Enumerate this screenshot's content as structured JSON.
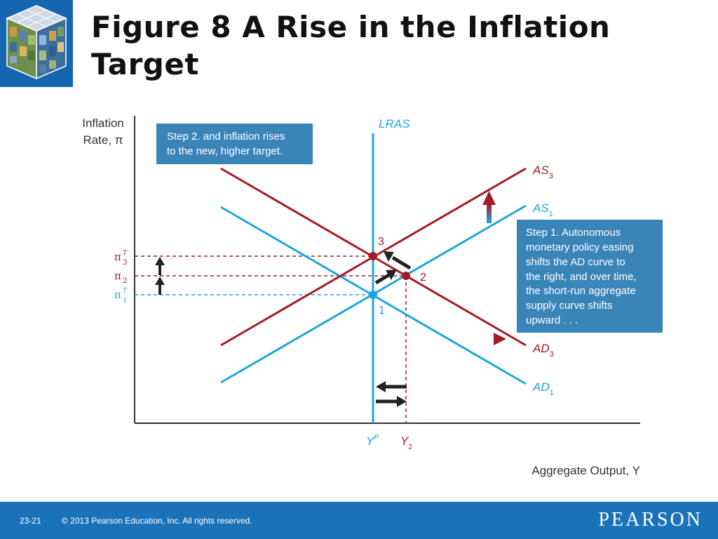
{
  "slide": {
    "title": "Figure 8  A Rise in the Inflation Target",
    "page_number": "23-21",
    "copyright": "© 2013 Pearson Education, Inc. All rights reserved.",
    "brand": "PEARSON"
  },
  "diagram": {
    "y_axis_label": [
      "Inflation",
      "Rate, π"
    ],
    "x_axis_label": "Aggregate Output, Y",
    "curves": {
      "lras": "LRAS",
      "as3": {
        "base": "AS",
        "sub": "3"
      },
      "as1": {
        "base": "AS",
        "sub": "1"
      },
      "ad3": {
        "base": "AD",
        "sub": "3"
      },
      "ad1": {
        "base": "AD",
        "sub": "1"
      }
    },
    "y_ticks": {
      "pi3": {
        "base": "π",
        "sup": "T",
        "sub": "3"
      },
      "pi2": {
        "base": "π",
        "sub": "2"
      },
      "pi1": {
        "base": "π",
        "sup": "T",
        "sub": "1"
      }
    },
    "x_ticks": {
      "yp": {
        "base": "Y",
        "sup": "P"
      },
      "y2": {
        "base": "Y",
        "sub": "2"
      }
    },
    "points": {
      "p1": "1",
      "p2": "2",
      "p3": "3"
    },
    "step1": [
      "Step 1. Autonomous",
      "monetary policy easing",
      "shifts the AD curve to",
      "the right, and over time,",
      "the short-run aggregate",
      "supply curve shifts",
      "upward . . ."
    ],
    "step2": [
      "Step 2. and inflation rises",
      "to the new, higher target."
    ],
    "colors": {
      "blue": "#1ea5e0",
      "red": "#a31c24",
      "box": "#3a85b8",
      "axis": "#333333"
    }
  }
}
